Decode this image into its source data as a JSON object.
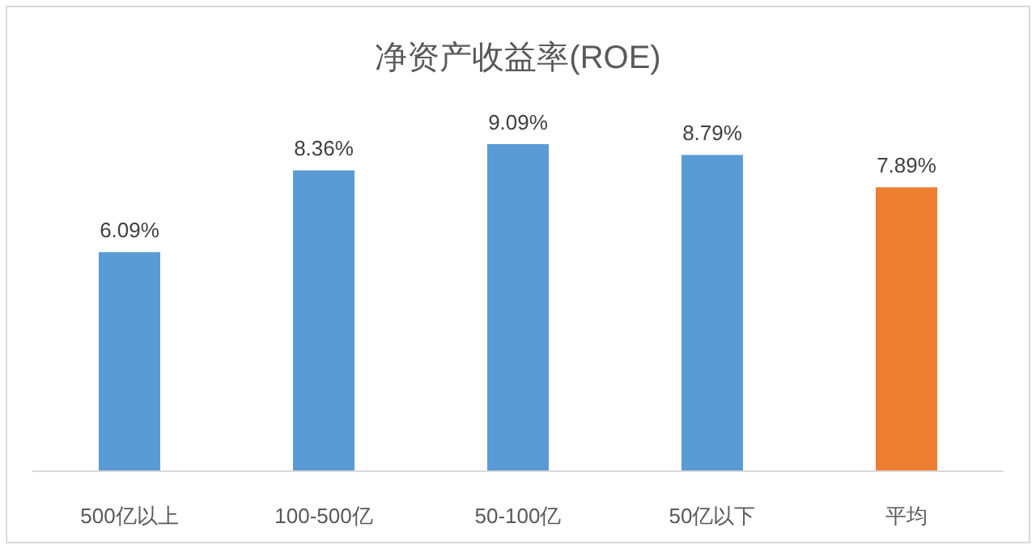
{
  "chart_data": {
    "type": "bar",
    "title": "净资产收益率(ROE)",
    "categories": [
      "500亿以上",
      "100-500亿",
      "50-100亿",
      "50亿以下",
      "平均"
    ],
    "values": [
      6.09,
      8.36,
      9.09,
      8.79,
      7.89
    ],
    "colors": [
      "#5b9bd5",
      "#5b9bd5",
      "#5b9bd5",
      "#5b9bd5",
      "#ed7d31"
    ],
    "value_labels": [
      "6.09%",
      "8.36%",
      "9.09%",
      "8.79%",
      "7.89%"
    ]
  }
}
